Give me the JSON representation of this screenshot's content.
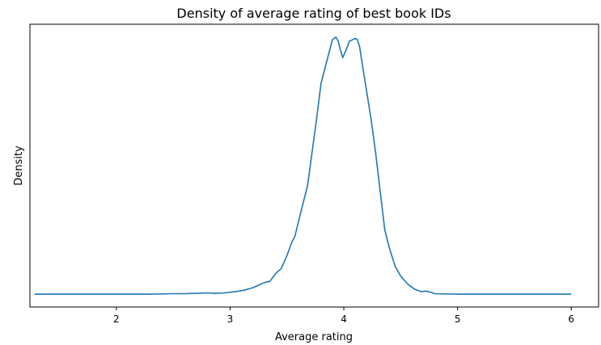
{
  "chart_data": {
    "type": "line",
    "title": "Density of average rating of best book IDs",
    "xlabel": "Average rating",
    "ylabel": "Density",
    "xlim": [
      1.24,
      6.24
    ],
    "ylim": [
      -0.05,
      1.05
    ],
    "xticks": [
      2,
      3,
      4,
      5,
      6
    ],
    "xtick_labels": [
      "2",
      "3",
      "4",
      "5",
      "6"
    ],
    "yticks_shown": false,
    "grid": false,
    "series": [
      {
        "color": "#1f77b4",
        "x": [
          1.28,
          1.6,
          2.0,
          2.3,
          2.5,
          2.6,
          2.7,
          2.8,
          2.86,
          2.95,
          3.05,
          3.12,
          3.2,
          3.25,
          3.3,
          3.35,
          3.4,
          3.45,
          3.5,
          3.54,
          3.57,
          3.6,
          3.64,
          3.68,
          3.72,
          3.76,
          3.8,
          3.84,
          3.87,
          3.9,
          3.93,
          3.95,
          3.97,
          3.99,
          4.02,
          4.05,
          4.08,
          4.1,
          4.12,
          4.14,
          4.16,
          4.2,
          4.24,
          4.28,
          4.32,
          4.36,
          4.4,
          4.45,
          4.5,
          4.56,
          4.62,
          4.68,
          4.72,
          4.76,
          4.8,
          5.0,
          5.5,
          6.0
        ],
        "y": [
          0.0,
          0.0,
          0.0,
          0.0,
          0.002,
          0.002,
          0.003,
          0.005,
          0.003,
          0.005,
          0.01,
          0.015,
          0.025,
          0.035,
          0.045,
          0.05,
          0.08,
          0.1,
          0.15,
          0.2,
          0.225,
          0.28,
          0.35,
          0.42,
          0.55,
          0.68,
          0.82,
          0.89,
          0.94,
          0.99,
          1.0,
          0.985,
          0.95,
          0.92,
          0.95,
          0.985,
          0.99,
          0.995,
          0.99,
          0.96,
          0.9,
          0.79,
          0.68,
          0.55,
          0.4,
          0.25,
          0.18,
          0.11,
          0.07,
          0.04,
          0.02,
          0.01,
          0.012,
          0.008,
          0.002,
          0.0,
          0.0,
          0.0
        ]
      }
    ]
  }
}
